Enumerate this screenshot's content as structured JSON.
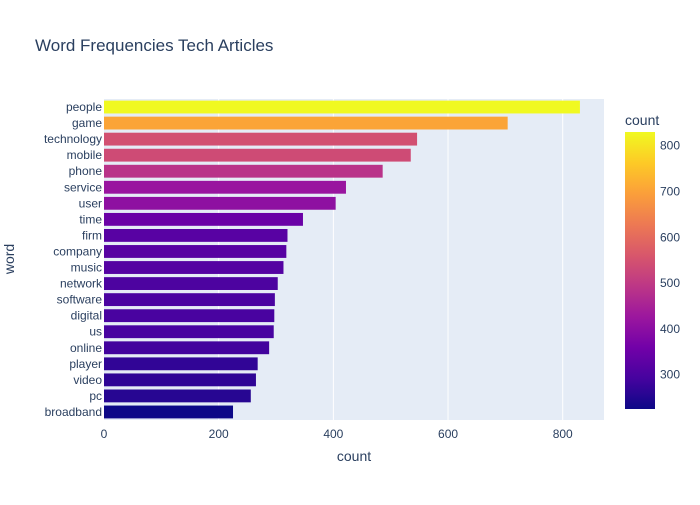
{
  "chart_data": {
    "type": "bar",
    "orientation": "horizontal",
    "title": "Word Frequencies Tech Articles",
    "xlabel": "count",
    "ylabel": "word",
    "xlim": [
      0,
      872
    ],
    "x_ticks": [
      0,
      200,
      400,
      600,
      800
    ],
    "grid": true,
    "categories": [
      "people",
      "game",
      "technology",
      "mobile",
      "phone",
      "service",
      "user",
      "time",
      "firm",
      "company",
      "music",
      "network",
      "software",
      "digital",
      "us",
      "online",
      "player",
      "video",
      "pc",
      "broadband"
    ],
    "values": [
      830,
      704,
      546,
      535,
      486,
      422,
      404,
      347,
      320,
      318,
      313,
      303,
      298,
      297,
      296,
      288,
      268,
      265,
      256,
      225
    ],
    "colorbar": {
      "title": "count",
      "range": [
        225,
        830
      ],
      "ticks": [
        300,
        400,
        500,
        600,
        700,
        800
      ],
      "colorscale": [
        "#0d0887",
        "#46039f",
        "#7201a8",
        "#9c179e",
        "#bd3786",
        "#d8576b",
        "#ed7953",
        "#fb9f3a",
        "#fdca26",
        "#f0f921"
      ]
    },
    "plot_bg": "#e5ecf6"
  }
}
